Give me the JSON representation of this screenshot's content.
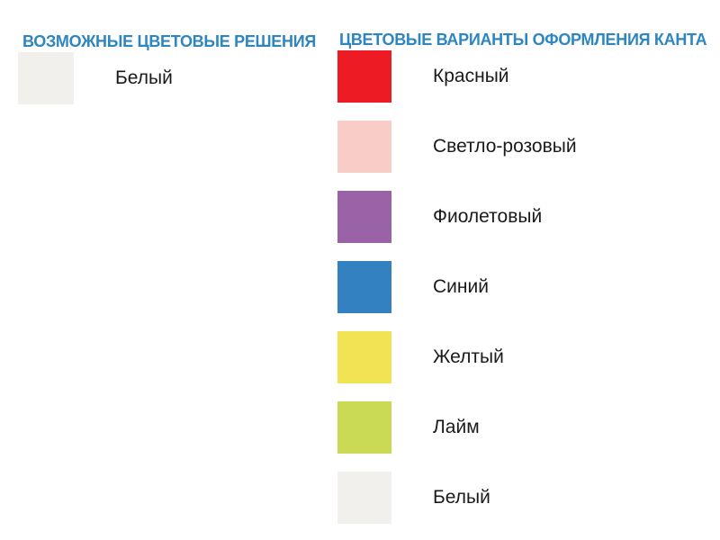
{
  "page": {
    "background": "#FFFFFF",
    "heading_color": "#2E86C1",
    "label_color": "#1A1A1A"
  },
  "left_section": {
    "title": "ВОЗМОЖНЫЕ ЦВЕТОВЫЕ РЕШЕНИЯ",
    "items": [
      {
        "label": "Белый",
        "color": "#F2F0ED"
      }
    ]
  },
  "right_section": {
    "title": "ЦВЕТОВЫЕ ВАРИАНТЫ ОФОРМЛЕНИЯ КАНТА",
    "items": [
      {
        "label": "Красный",
        "color": "#ED1C24"
      },
      {
        "label": "Светло-розовый",
        "color": "#F8CDC8"
      },
      {
        "label": "Фиолетовый",
        "color": "#9A63A8"
      },
      {
        "label": "Синий",
        "color": "#3381C0"
      },
      {
        "label": "Желтый",
        "color": "#F2E355"
      },
      {
        "label": "Лайм",
        "color": "#CADA54"
      },
      {
        "label": "Белый",
        "color": "#F2F0ED"
      }
    ]
  }
}
